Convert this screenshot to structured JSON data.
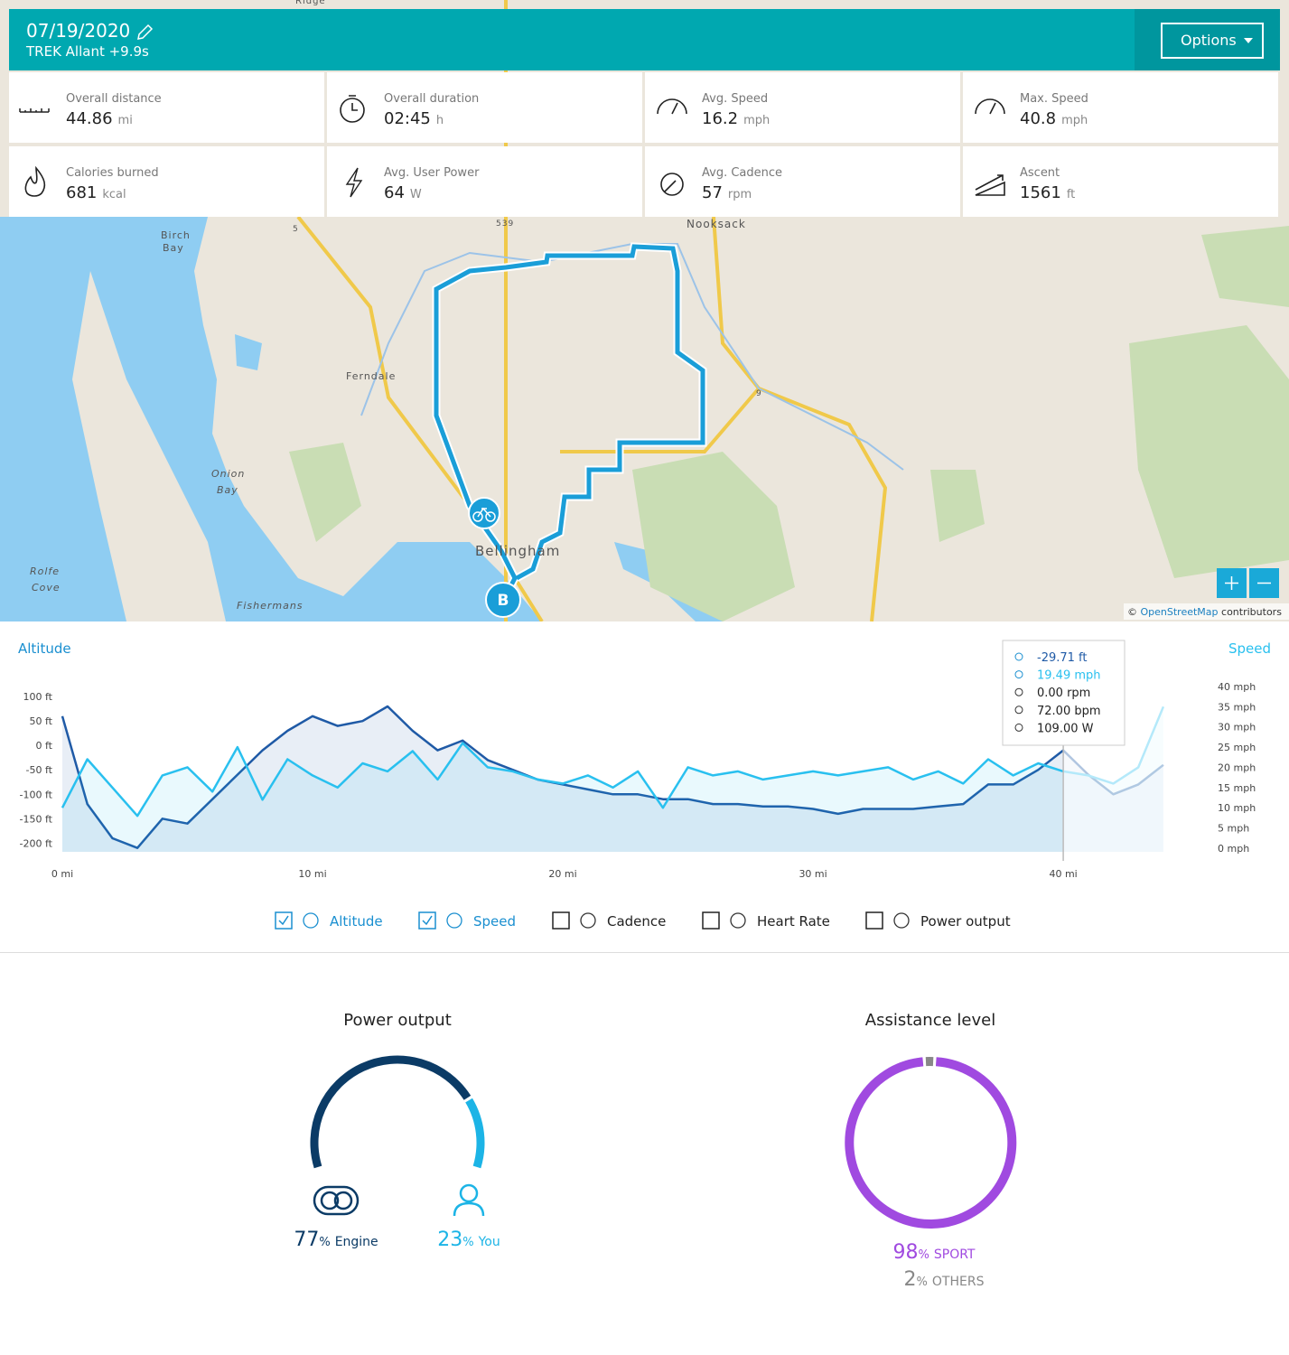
{
  "header": {
    "title": "07/19/2020",
    "subtitle": "TREK Allant +9.9s",
    "button": "Options"
  },
  "stats": [
    {
      "label": "Overall distance",
      "value": 44.86,
      "unit": "mi"
    },
    {
      "label": "Overall duration",
      "value": "02:45",
      "unit": "h"
    },
    {
      "label": "Avg. Speed",
      "value": 16.2,
      "unit": "mph"
    },
    {
      "label": "Max. Speed",
      "value": 40.8,
      "unit": "mph"
    },
    {
      "label": "Calories burned",
      "value": 681,
      "unit": "kcal"
    },
    {
      "label": "Avg. User Power",
      "value": 64,
      "unit": "W"
    },
    {
      "label": "Avg. Cadence",
      "value": 57,
      "unit": "rpm"
    },
    {
      "label": "Ascent",
      "value": 1561,
      "unit": "ft"
    }
  ],
  "map": {
    "labels": [
      "Ridge",
      "Birch",
      "Bay",
      "Ferndale",
      "Nooksack",
      "Onion",
      "Bay",
      "Rolfe",
      "Cove",
      "Fishermans",
      "Bellingham",
      "539",
      "5",
      "9"
    ],
    "marker_end": "B",
    "attribution_prefix": "©",
    "attribution_link": "OpenStreetMap",
    "attribution_suffix": "contributors"
  },
  "chart_data": [
    {
      "type": "line",
      "ylabel": "Altitude",
      "y2label": "Speed",
      "x": [
        0,
        1,
        2,
        3,
        4,
        5,
        6,
        7,
        8,
        9,
        10,
        11,
        12,
        13,
        14,
        15,
        16,
        17,
        18,
        19,
        20,
        21,
        22,
        23,
        24,
        25,
        26,
        27,
        28,
        29,
        30,
        31,
        32,
        33,
        34,
        35,
        36,
        37,
        38,
        39,
        40,
        41,
        42,
        43,
        44
      ],
      "xlim": [
        0,
        45.7
      ],
      "xticks": [
        {
          "value": 0,
          "label": "0 mi"
        },
        {
          "value": 10,
          "label": "10 mi"
        },
        {
          "value": 20,
          "label": "20 mi"
        },
        {
          "value": 30,
          "label": "30 mi"
        },
        {
          "value": 40,
          "label": "40 mi"
        }
      ],
      "ylim": [
        -218,
        130
      ],
      "yticks": [
        {
          "value": 100,
          "label": "100 ft"
        },
        {
          "value": 50,
          "label": "50 ft"
        },
        {
          "value": 0,
          "label": "0 ft"
        },
        {
          "value": -50,
          "label": "-50 ft"
        },
        {
          "value": -100,
          "label": "-100 ft"
        },
        {
          "value": -150,
          "label": "-150 ft"
        },
        {
          "value": -200,
          "label": "-200 ft"
        }
      ],
      "y2lim": [
        -0.9,
        41.1
      ],
      "y2ticks": [
        {
          "value": 40,
          "label": "40 mph"
        },
        {
          "value": 35,
          "label": "35 mph"
        },
        {
          "value": 30,
          "label": "30 mph"
        },
        {
          "value": 25,
          "label": "25 mph"
        },
        {
          "value": 20,
          "label": "20 mph"
        },
        {
          "value": 15,
          "label": "15 mph"
        },
        {
          "value": 10,
          "label": "10 mph"
        },
        {
          "value": 5,
          "label": "5 mph"
        },
        {
          "value": 0,
          "label": "0 mph"
        }
      ],
      "series": [
        {
          "name": "Altitude",
          "color": "#1f5aa6",
          "checked": true,
          "values": [
            60,
            -120,
            -190,
            -210,
            -150,
            -160,
            -110,
            -60,
            -10,
            30,
            60,
            40,
            50,
            80,
            30,
            -10,
            10,
            -30,
            -50,
            -70,
            -80,
            -90,
            -100,
            -100,
            -110,
            -110,
            -120,
            -120,
            -125,
            -125,
            -130,
            -140,
            -130,
            -130,
            -130,
            -125,
            -120,
            -80,
            -80,
            -50,
            -10,
            -60,
            -100,
            -80,
            -40
          ]
        },
        {
          "name": "Speed",
          "color": "#29c0ef",
          "axis": "y2",
          "checked": true,
          "values": [
            10,
            22,
            15,
            8,
            18,
            20,
            14,
            25,
            12,
            22,
            18,
            15,
            21,
            19,
            24,
            17,
            26,
            20,
            19,
            17,
            16,
            18,
            15,
            19,
            10,
            20,
            18,
            19,
            17,
            18,
            19,
            18,
            19,
            20,
            17,
            19,
            16,
            22,
            18,
            21,
            19,
            18,
            16,
            20,
            35
          ]
        }
      ],
      "toggles": [
        {
          "name": "Cadence",
          "checked": false
        },
        {
          "name": "Heart Rate",
          "checked": false
        },
        {
          "name": "Power output",
          "checked": false
        }
      ],
      "cursor": 40,
      "tooltip": [
        "-29.71 ft",
        "19.49 mph",
        "0.00 rpm",
        "72.00 bpm",
        "109.00 W"
      ]
    },
    {
      "type": "gauge",
      "title": "Power output",
      "categories": [
        "Engine",
        "You"
      ],
      "values": [
        77,
        23
      ],
      "unit": "%",
      "colors": [
        "#0b3b66",
        "#1cb4e6"
      ]
    },
    {
      "type": "donut",
      "title": "Assistance level",
      "categories": [
        "SPORT",
        "OTHERS"
      ],
      "values": [
        98,
        2
      ],
      "unit": "%",
      "colors": [
        "#a04ae0",
        "#888888"
      ]
    }
  ]
}
